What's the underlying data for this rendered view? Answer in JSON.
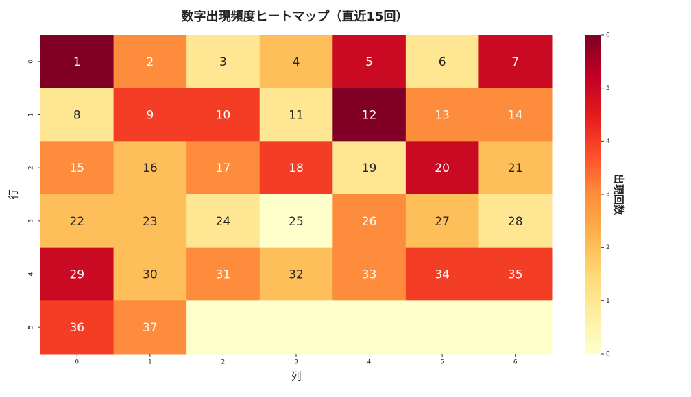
{
  "chart_data": {
    "type": "heatmap",
    "title": "数字出現頻度ヒートマップ（直近15回）",
    "xlabel": "列",
    "ylabel": "行",
    "colorbar_label": "出現回数",
    "x_categories": [
      "0",
      "1",
      "2",
      "3",
      "4",
      "5",
      "6"
    ],
    "y_categories": [
      "0",
      "1",
      "2",
      "3",
      "4",
      "5"
    ],
    "values": [
      [
        6,
        3,
        1,
        2,
        5,
        1,
        5
      ],
      [
        1,
        4,
        4,
        1,
        6,
        3,
        3
      ],
      [
        3,
        2,
        3,
        4,
        1,
        5,
        2
      ],
      [
        2,
        2,
        1,
        0,
        3,
        2,
        1
      ],
      [
        5,
        2,
        3,
        2,
        3,
        4,
        4
      ],
      [
        4,
        3,
        0,
        0,
        0,
        0,
        0
      ]
    ],
    "cell_labels": [
      [
        "1",
        "2",
        "3",
        "4",
        "5",
        "6",
        "7"
      ],
      [
        "8",
        "9",
        "10",
        "11",
        "12",
        "13",
        "14"
      ],
      [
        "15",
        "16",
        "17",
        "18",
        "19",
        "20",
        "21"
      ],
      [
        "22",
        "23",
        "24",
        "25",
        "26",
        "27",
        "28"
      ],
      [
        "29",
        "30",
        "31",
        "32",
        "33",
        "34",
        "35"
      ],
      [
        "36",
        "37",
        null,
        null,
        null,
        null,
        null
      ]
    ],
    "clim": [
      0,
      6
    ],
    "cticks": [
      0,
      1,
      2,
      3,
      4,
      5,
      6
    ],
    "colormap": [
      "#ffffcc",
      "#ffeda0",
      "#fed976",
      "#feb24c",
      "#fd8d3c",
      "#fc4e2a",
      "#e31a1c",
      "#bd0026",
      "#800026"
    ]
  }
}
